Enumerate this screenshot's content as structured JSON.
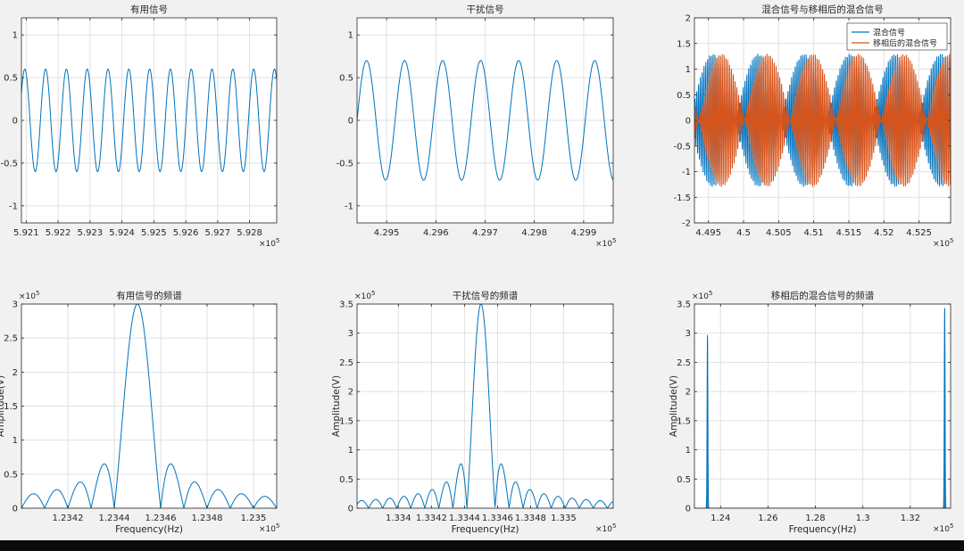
{
  "figure": {
    "background": "#f0f0f0",
    "axes_color": "#262626",
    "grid_color": "#e1e1e1",
    "color_blue": "#0072bd",
    "color_orange": "#d95319"
  },
  "chart_data": [
    {
      "id": "useful-signal",
      "type": "line",
      "title": "有用信号",
      "xlabel": "",
      "ylabel": "",
      "xlim": [
        592085,
        592885
      ],
      "ylim": [
        -1.2,
        1.2
      ],
      "xticks": [
        592100,
        592200,
        592300,
        592400,
        592500,
        592600,
        592700,
        592800
      ],
      "xtick_labels": [
        "5.921",
        "5.922",
        "5.923",
        "5.924",
        "5.925",
        "5.926",
        "5.927",
        "5.928"
      ],
      "yticks": [
        -1,
        -0.5,
        0,
        0.5,
        1
      ],
      "ytick_labels": [
        "-1",
        "-0.5",
        "0",
        "0.5",
        "1"
      ],
      "x_multiplier": "×10",
      "x_exponent": "5",
      "grid": true,
      "series": [
        {
          "color": "#0072bd",
          "kind": "sine",
          "amplitude": 0.6,
          "period": 65.2,
          "phase": 0.55,
          "samples": 700
        }
      ]
    },
    {
      "id": "interference-signal",
      "type": "line",
      "title": "干扰信号",
      "xlabel": "",
      "ylabel": "",
      "xlim": [
        429440,
        429960
      ],
      "ylim": [
        -1.2,
        1.2
      ],
      "xticks": [
        429500,
        429600,
        429700,
        429800,
        429900
      ],
      "xtick_labels": [
        "4.295",
        "4.296",
        "4.297",
        "4.298",
        "4.299"
      ],
      "yticks": [
        -1,
        -0.5,
        0,
        0.5,
        1
      ],
      "ytick_labels": [
        "-1",
        "-0.5",
        "0",
        "0.5",
        "1"
      ],
      "x_multiplier": "×10",
      "x_exponent": "5",
      "grid": true,
      "series": [
        {
          "color": "#0072bd",
          "kind": "sine",
          "amplitude": 0.7,
          "period": 77.2,
          "phase": 0.0,
          "samples": 700
        }
      ]
    },
    {
      "id": "mixed-signal",
      "type": "line",
      "title": "混合信号与移相后的混合信号",
      "xlabel": "",
      "ylabel": "",
      "xlim": [
        449300,
        452950
      ],
      "ylim": [
        -2,
        2
      ],
      "xticks": [
        449500,
        450000,
        450500,
        451000,
        451500,
        452000,
        452500
      ],
      "xtick_labels": [
        "4.495",
        "4.5",
        "4.505",
        "4.51",
        "4.515",
        "4.52",
        "4.525"
      ],
      "yticks": [
        -2,
        -1.5,
        -1,
        -0.5,
        0,
        0.5,
        1,
        1.5,
        2
      ],
      "ytick_labels": [
        "-2",
        "-1.5",
        "-1",
        "-0.5",
        "0",
        "0.5",
        "1",
        "1.5",
        "2"
      ],
      "x_multiplier": "×10",
      "x_exponent": "5",
      "grid": true,
      "legend": {
        "position": "top-right",
        "entries": [
          "混合信号",
          "移相后的混合信号"
        ]
      },
      "series": [
        {
          "name": "混合信号",
          "color": "#0072bd",
          "kind": "beat",
          "amplitude": 1.3,
          "carrier_period": 26,
          "envelope_period": 1300,
          "envelope_phase": 0.3,
          "samples": 1600
        },
        {
          "name": "移相后的混合信号",
          "color": "#d95319",
          "kind": "beat",
          "amplitude": 1.3,
          "carrier_period": 26,
          "envelope_period": 1300,
          "envelope_phase": -0.3,
          "samples": 1600
        }
      ]
    },
    {
      "id": "useful-spectrum",
      "type": "line",
      "title": "有用信号的频谱",
      "xlabel": "Frequency(Hz)",
      "ylabel": "Amplitude(V)",
      "xlim": [
        123400,
        123510
      ],
      "ylim": [
        0,
        300000
      ],
      "xticks": [
        123420,
        123440,
        123460,
        123480,
        123500
      ],
      "xtick_labels": [
        "1.2342",
        "1.2344",
        "1.2346",
        "1.2348",
        "1.235"
      ],
      "yticks": [
        0,
        50000,
        100000,
        150000,
        200000,
        250000,
        300000
      ],
      "ytick_labels": [
        "0",
        "0.5",
        "1",
        "1.5",
        "2",
        "2.5",
        "3"
      ],
      "x_multiplier": "×10",
      "x_exponent": "5",
      "y_multiplier": "×10",
      "y_exponent": "5",
      "grid": true,
      "series": [
        {
          "color": "#0072bd",
          "kind": "sinc",
          "peak": 300000,
          "center": 123450,
          "width": 10,
          "samples": 900
        }
      ]
    },
    {
      "id": "interference-spectrum",
      "type": "line",
      "title": "干扰信号的频谱",
      "xlabel": "Frequency(Hz)",
      "ylabel": "Amplitude(V)",
      "xlim": [
        133375,
        133530
      ],
      "ylim": [
        0,
        350000
      ],
      "xticks": [
        133400,
        133420,
        133440,
        133460,
        133480,
        133500
      ],
      "xtick_labels": [
        "1.334",
        "1.3342",
        "1.3344",
        "1.3346",
        "1.3348",
        "1.335"
      ],
      "yticks": [
        0,
        50000,
        100000,
        150000,
        200000,
        250000,
        300000,
        350000
      ],
      "ytick_labels": [
        "0",
        "0.5",
        "1",
        "1.5",
        "2",
        "2.5",
        "3",
        "3.5"
      ],
      "x_multiplier": "×10",
      "x_exponent": "5",
      "y_multiplier": "×10",
      "y_exponent": "5",
      "grid": true,
      "series": [
        {
          "color": "#0072bd",
          "kind": "sinc",
          "peak": 350000,
          "center": 133450,
          "width": 8.5,
          "samples": 1100
        }
      ]
    },
    {
      "id": "shifted-mixed-spectrum",
      "type": "area",
      "title": "移相后的混合信号的频谱",
      "xlabel": "Frequency(Hz)",
      "ylabel": "Amplitude(V)",
      "xlim": [
        122900,
        133700
      ],
      "ylim": [
        0,
        350000
      ],
      "xticks": [
        124000,
        126000,
        128000,
        130000,
        132000
      ],
      "xtick_labels": [
        "1.24",
        "1.26",
        "1.28",
        "1.3",
        "1.32"
      ],
      "yticks": [
        0,
        50000,
        100000,
        150000,
        200000,
        250000,
        300000,
        350000
      ],
      "ytick_labels": [
        "0",
        "0.5",
        "1",
        "1.5",
        "2",
        "2.5",
        "3",
        "3.5"
      ],
      "x_multiplier": "×10",
      "x_exponent": "5",
      "y_multiplier": "×10",
      "y_exponent": "5",
      "grid": true,
      "series": [
        {
          "color": "#0072bd",
          "kind": "peaks",
          "samples": 1400,
          "peaks": [
            {
              "center": 123450,
              "height": 300000,
              "width": 55
            },
            {
              "center": 133450,
              "height": 350000,
              "width": 55
            }
          ]
        }
      ]
    }
  ]
}
